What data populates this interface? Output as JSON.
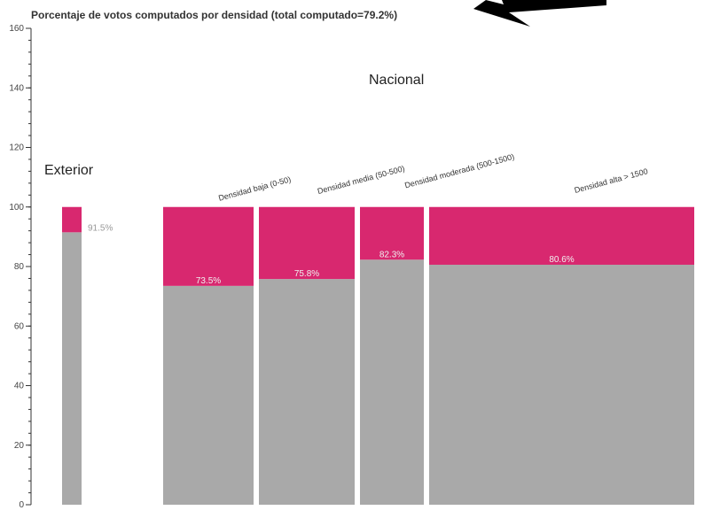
{
  "chart_data": {
    "type": "bar",
    "title": "Porcentaje de votos computados por densidad (total computado=79.2%)",
    "ylim": [
      0,
      160
    ],
    "y_ticks": [
      0,
      20,
      40,
      60,
      80,
      100,
      120,
      140,
      160
    ],
    "grid": false,
    "stacked": true,
    "variable_width": true,
    "groups": [
      {
        "label": "Exterior"
      },
      {
        "label": "Nacional"
      }
    ],
    "categories": [
      {
        "label": "",
        "group": "Exterior",
        "computed": 91.5,
        "total": 100,
        "value_label": "91.5%"
      },
      {
        "label": "Densidad baja (0-50)",
        "group": "Nacional",
        "computed": 73.5,
        "total": 100,
        "value_label": "73.5%"
      },
      {
        "label": "Densidad media (50-500)",
        "group": "Nacional",
        "computed": 75.8,
        "total": 100,
        "value_label": "75.8%"
      },
      {
        "label": "Densidad moderada (500-1500)",
        "group": "Nacional",
        "computed": 82.3,
        "total": 100,
        "value_label": "82.3%"
      },
      {
        "label": "Densidad alta > 1500",
        "group": "Nacional",
        "computed": 80.6,
        "total": 100,
        "value_label": "80.6%"
      }
    ],
    "colors": {
      "computed": "#a9a9a9",
      "remaining": "#d8286f",
      "axis": "#333333",
      "outside_label": "#999999",
      "inside_label": "#f0f0f0"
    }
  }
}
